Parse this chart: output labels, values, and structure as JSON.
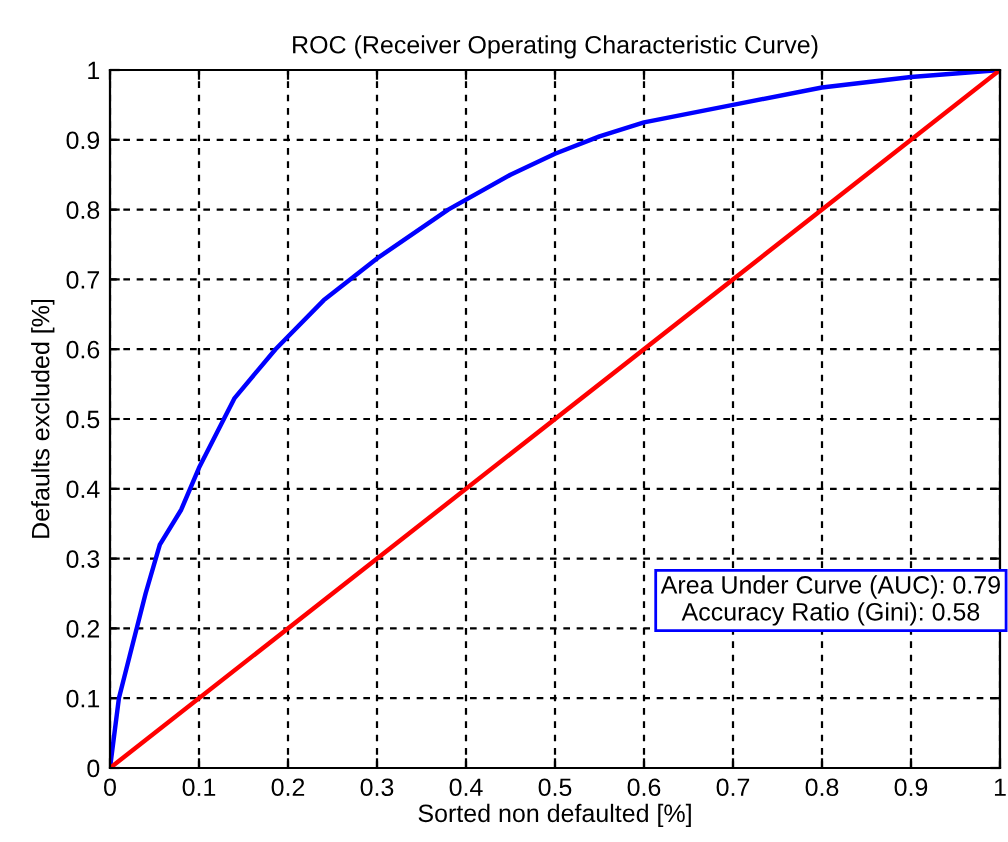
{
  "chart_data": {
    "type": "line",
    "title": "ROC (Receiver Operating Characteristic Curve)",
    "xlabel": "Sorted non defaulted [%]",
    "ylabel": "Defaults excluded [%]",
    "series": [
      {
        "color": "#0000ff",
        "x": [
          0,
          0.01,
          0.022,
          0.04,
          0.056,
          0.08,
          0.1,
          0.14,
          0.186,
          0.24,
          0.3,
          0.38,
          0.45,
          0.5,
          0.55,
          0.6,
          0.7,
          0.8,
          0.9,
          0.95,
          1
        ],
        "values": [
          0,
          0.1,
          0.16,
          0.25,
          0.32,
          0.37,
          0.43,
          0.53,
          0.6,
          0.67,
          0.73,
          0.8,
          0.85,
          0.88,
          0.905,
          0.925,
          0.95,
          0.975,
          0.99,
          0.995,
          1
        ]
      },
      {
        "color": "#ff0000",
        "x": [
          0,
          1
        ],
        "values": [
          0,
          1
        ]
      }
    ],
    "xlim": [
      0,
      1
    ],
    "ylim": [
      0,
      1
    ],
    "xticks": [
      0,
      0.1,
      0.2,
      0.3,
      0.4,
      0.5,
      0.6,
      0.7,
      0.8,
      0.9,
      1
    ],
    "yticks": [
      0,
      0.1,
      0.2,
      0.3,
      0.4,
      0.5,
      0.6,
      0.7,
      0.8,
      0.9,
      1
    ],
    "grid": true,
    "line_style": "solid",
    "marker": "none",
    "annotations": [
      "Area Under Curve (AUC): 0.79\nAccuracy Ratio (Gini): 0.58"
    ]
  }
}
